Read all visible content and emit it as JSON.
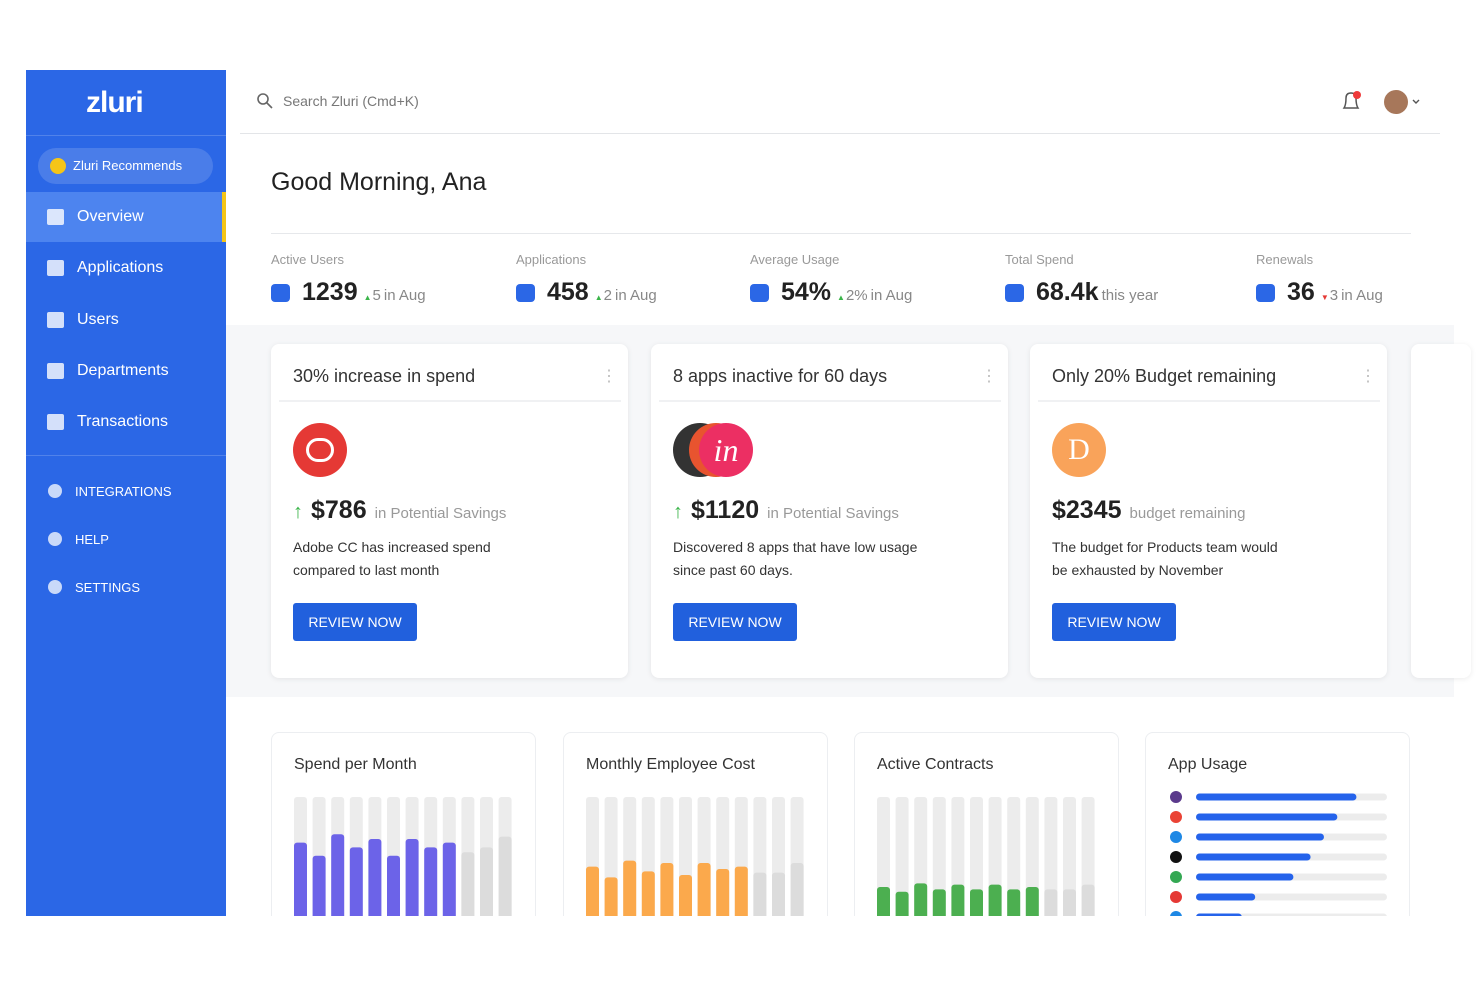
{
  "sidebar": {
    "logo": "zluri",
    "recommend": "Zluri Recommends",
    "nav": [
      "Overview",
      "Applications",
      "Users",
      "Departments",
      "Transactions"
    ],
    "active": 0,
    "secondary": [
      "INTEGRATIONS",
      "HELP",
      "SETTINGS"
    ]
  },
  "header": {
    "search_placeholder": "Search Zluri (Cmd+K)"
  },
  "greeting": "Good Morning, Ana",
  "stats": [
    {
      "label": "Active Users",
      "value": 1239,
      "change": 5,
      "trend": "up",
      "period": "in Aug"
    },
    {
      "label": "Applications",
      "value": 458,
      "change": 2,
      "trend": "up",
      "period": "in Aug"
    },
    {
      "label": "Average Usage",
      "value": "54%",
      "change": "2%",
      "trend": "up",
      "period": "in Aug"
    },
    {
      "label": "Total Spend",
      "value": "68.4k",
      "period": "this year"
    },
    {
      "label": "Renewals",
      "value": 36,
      "change": 3,
      "trend": "down",
      "period": "in Aug"
    }
  ],
  "insights": [
    {
      "title": "30% increase in spend",
      "amount": "$786",
      "trend": "up",
      "amount_note": "in Potential Savings",
      "description": "Adobe CC has increased spend compared to last month",
      "button": "REVIEW NOW"
    },
    {
      "title": "8 apps inactive for 60 days",
      "icon_text": "in",
      "amount": "$1120",
      "trend": "up",
      "amount_note": "in Potential Savings",
      "description": "Discovered 8 apps that have low usage since past 60 days.",
      "button": "REVIEW NOW"
    },
    {
      "title": "Only 20% Budget remaining",
      "icon_text": "D",
      "amount": "$2345",
      "amount_note": "budget remaining",
      "description": "The budget for Products team would be exhausted by November",
      "button": "REVIEW NOW"
    }
  ],
  "charts": [
    {
      "type": "bar",
      "title": "Spend per Month",
      "ylim": [
        0,
        100
      ],
      "values": [
        62,
        51,
        69,
        58,
        65,
        51,
        65,
        58,
        62,
        54,
        58,
        67
      ],
      "colors": [
        "#6c63e8",
        "#6c63e8",
        "#6c63e8",
        "#6c63e8",
        "#6c63e8",
        "#6c63e8",
        "#6c63e8",
        "#6c63e8",
        "#6c63e8",
        "#dcdcdc",
        "#dcdcdc",
        "#dcdcdc"
      ]
    },
    {
      "type": "bar",
      "title": "Monthly Employee Cost",
      "ylim": [
        0,
        100
      ],
      "values": [
        42,
        33,
        47,
        38,
        45,
        35,
        45,
        40,
        42,
        37,
        37,
        45
      ],
      "colors": [
        "#fba94c",
        "#fba94c",
        "#fba94c",
        "#fba94c",
        "#fba94c",
        "#fba94c",
        "#fba94c",
        "#fba94c",
        "#fba94c",
        "#dcdcdc",
        "#dcdcdc",
        "#dcdcdc"
      ]
    },
    {
      "type": "bar",
      "title": "Active Contracts",
      "ylim": [
        0,
        100
      ],
      "values": [
        25,
        21,
        28,
        23,
        27,
        23,
        27,
        23,
        25,
        23,
        23,
        27
      ],
      "colors": [
        "#4caf50",
        "#4caf50",
        "#4caf50",
        "#4caf50",
        "#4caf50",
        "#4caf50",
        "#4caf50",
        "#4caf50",
        "#4caf50",
        "#dcdcdc",
        "#dcdcdc",
        "#dcdcdc"
      ]
    },
    {
      "type": "hbar",
      "title": "App Usage",
      "xlim": [
        0,
        100
      ],
      "values": [
        84,
        74,
        67,
        60,
        51,
        31,
        24
      ],
      "color": "#2563eb",
      "icon_colors": [
        "#5b3a8c",
        "#ea4335",
        "#1e88e5",
        "#111111",
        "#34a853",
        "#e53935",
        "#1e88e5"
      ]
    }
  ]
}
